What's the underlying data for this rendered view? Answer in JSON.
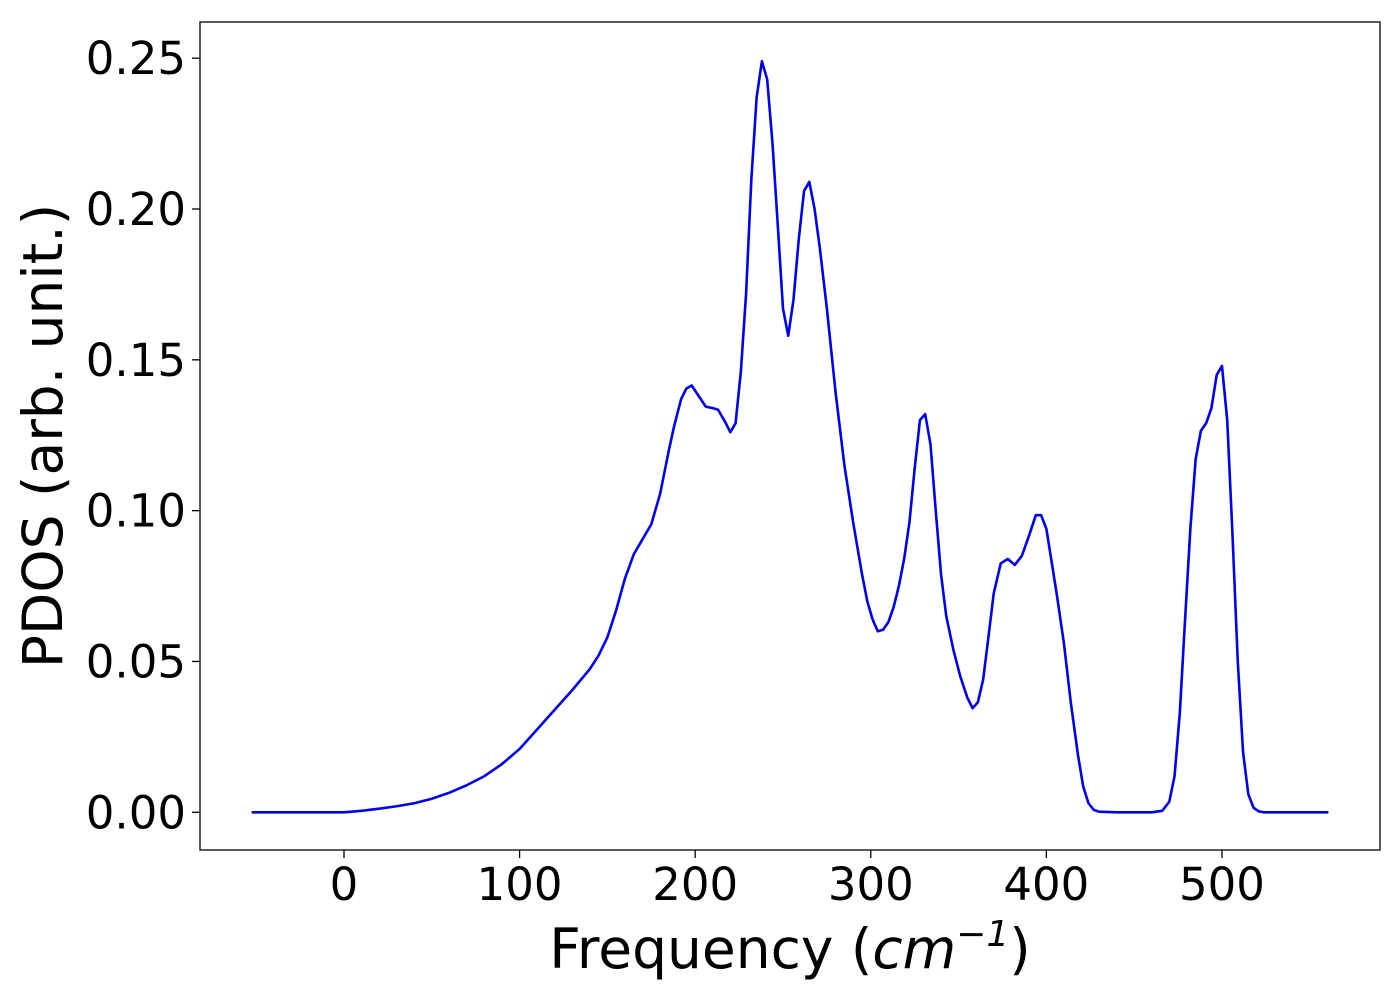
{
  "chart_data": {
    "type": "line",
    "title": "",
    "xlabel_parts": {
      "prefix": "Frequency (",
      "math": "cm",
      "superscript": "−1",
      "suffix": ")"
    },
    "ylabel": "PDOS (arb. unit.)",
    "xlim": [
      -82,
      590
    ],
    "ylim": [
      -0.0125,
      0.262
    ],
    "x_ticks": [
      0,
      100,
      200,
      300,
      400,
      500
    ],
    "x_tick_labels": [
      "0",
      "100",
      "200",
      "300",
      "400",
      "500"
    ],
    "y_ticks": [
      0.0,
      0.05,
      0.1,
      0.15,
      0.2,
      0.25
    ],
    "y_tick_labels": [
      "0.00",
      "0.05",
      "0.10",
      "0.15",
      "0.20",
      "0.25"
    ],
    "grid": false,
    "legend": "none",
    "series": [
      {
        "color": "#0000ee",
        "x": [
          -52,
          -20,
          0,
          10,
          20,
          30,
          40,
          50,
          60,
          70,
          80,
          90,
          100,
          110,
          120,
          130,
          140,
          145,
          150,
          155,
          160,
          165,
          170,
          175,
          180,
          185,
          188,
          192,
          195,
          198,
          202,
          206,
          210,
          213,
          217,
          220,
          223,
          226,
          229,
          232,
          235,
          238,
          241,
          244,
          247,
          250,
          253,
          256,
          259,
          262,
          265,
          268,
          271,
          275,
          280,
          285,
          290,
          295,
          298,
          301,
          304,
          307,
          310,
          313,
          316,
          319,
          322,
          325,
          328,
          331,
          334,
          337,
          340,
          343,
          347,
          351,
          355,
          358,
          361,
          364,
          367,
          370,
          374,
          378,
          382,
          386,
          390,
          394,
          397,
          400,
          403,
          406,
          410,
          414,
          418,
          421,
          424,
          427,
          430,
          440,
          450,
          460,
          466,
          470,
          473,
          476,
          479,
          482,
          485,
          488,
          491,
          494,
          497,
          500,
          503,
          506,
          509,
          512,
          515,
          518,
          521,
          524,
          530,
          560
        ],
        "y": [
          0,
          0,
          0,
          0.0005,
          0.0012,
          0.002,
          0.003,
          0.0045,
          0.0065,
          0.009,
          0.012,
          0.016,
          0.021,
          0.0275,
          0.034,
          0.0405,
          0.0475,
          0.052,
          0.058,
          0.067,
          0.0775,
          0.0855,
          0.0905,
          0.0955,
          0.1055,
          0.12,
          0.128,
          0.137,
          0.1405,
          0.1415,
          0.138,
          0.1345,
          0.134,
          0.1335,
          0.1295,
          0.126,
          0.129,
          0.146,
          0.172,
          0.21,
          0.237,
          0.249,
          0.243,
          0.222,
          0.195,
          0.167,
          0.158,
          0.17,
          0.19,
          0.206,
          0.209,
          0.2,
          0.187,
          0.167,
          0.139,
          0.115,
          0.096,
          0.079,
          0.07,
          0.064,
          0.06,
          0.0605,
          0.063,
          0.068,
          0.075,
          0.084,
          0.096,
          0.114,
          0.13,
          0.132,
          0.122,
          0.1,
          0.079,
          0.065,
          0.054,
          0.045,
          0.038,
          0.0345,
          0.0365,
          0.044,
          0.058,
          0.0725,
          0.0825,
          0.084,
          0.082,
          0.085,
          0.0915,
          0.0985,
          0.0985,
          0.094,
          0.083,
          0.072,
          0.056,
          0.036,
          0.019,
          0.0085,
          0.003,
          0.0008,
          0.0002,
          0,
          0,
          0,
          0.0005,
          0.0035,
          0.012,
          0.033,
          0.064,
          0.094,
          0.117,
          0.1265,
          0.129,
          0.134,
          0.145,
          0.148,
          0.13,
          0.092,
          0.05,
          0.02,
          0.006,
          0.0015,
          0.0003,
          0,
          0,
          0
        ]
      }
    ]
  }
}
